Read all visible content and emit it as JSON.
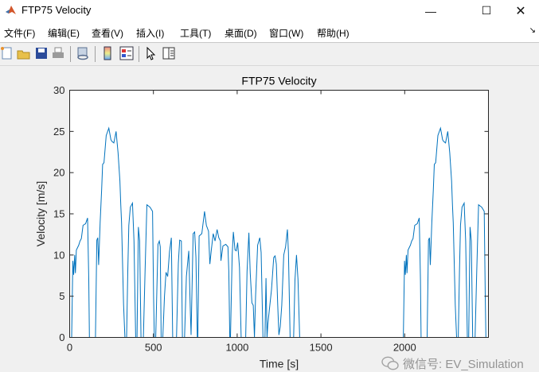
{
  "window": {
    "title": "FTP75 Velocity",
    "controls": {
      "minimize": "—",
      "maximize": "☐",
      "close": "✕"
    }
  },
  "menu": {
    "items": [
      {
        "label": "文件(F)"
      },
      {
        "label": "编辑(E)"
      },
      {
        "label": "查看(V)"
      },
      {
        "label": "插入(I)"
      },
      {
        "label": "工具(T)"
      },
      {
        "label": "桌面(D)"
      },
      {
        "label": "窗口(W)"
      },
      {
        "label": "帮助(H)"
      }
    ],
    "dock_glyph": "↘"
  },
  "toolbar": {
    "icons": [
      "new-file-icon",
      "open-folder-icon",
      "save-icon",
      "print-icon",
      "link-figure-icon",
      "colorbar-icon",
      "legend-icon",
      "pointer-icon",
      "property-inspector-icon"
    ]
  },
  "watermark": {
    "text": "微信号: EV_Simulation"
  },
  "colors": {
    "line": "#0072BD",
    "axes": "#262626",
    "figure_bg": "#f0f0f0"
  },
  "chart_data": {
    "type": "line",
    "title": "FTP75 Velocity",
    "xlabel": "Time [s]",
    "ylabel": "Velocity [m/s]",
    "xlim": [
      0,
      2500
    ],
    "ylim": [
      0,
      30
    ],
    "xticks": [
      0,
      500,
      1000,
      1500,
      2000
    ],
    "yticks": [
      0,
      5,
      10,
      15,
      20,
      25,
      30
    ],
    "grid": false,
    "legend": "none",
    "series": [
      {
        "color": "#0072BD",
        "points": [
          [
            0,
            0
          ],
          [
            12,
            0
          ],
          [
            19,
            9.3
          ],
          [
            24,
            7.6
          ],
          [
            30,
            10
          ],
          [
            34,
            7.8
          ],
          [
            40,
            10.6
          ],
          [
            54,
            11.2
          ],
          [
            62,
            11.7
          ],
          [
            70,
            12
          ],
          [
            80,
            13.6
          ],
          [
            95,
            13.8
          ],
          [
            107,
            14.5
          ],
          [
            114,
            7
          ],
          [
            118,
            0
          ],
          [
            154,
            0
          ],
          [
            162,
            11.8
          ],
          [
            168,
            12.1
          ],
          [
            173,
            8.8
          ],
          [
            182,
            14
          ],
          [
            191,
            18
          ],
          [
            197,
            21
          ],
          [
            205,
            21.2
          ],
          [
            218,
            24.5
          ],
          [
            234,
            25.4
          ],
          [
            246,
            24
          ],
          [
            252,
            23.8
          ],
          [
            264,
            23.6
          ],
          [
            277,
            25
          ],
          [
            289,
            22.4
          ],
          [
            300,
            19
          ],
          [
            305,
            16.1
          ],
          [
            310,
            13.9
          ],
          [
            322,
            4
          ],
          [
            330,
            0
          ],
          [
            340,
            0
          ],
          [
            347,
            8
          ],
          [
            353,
            13.6
          ],
          [
            362,
            15.8
          ],
          [
            375,
            16.3
          ],
          [
            384,
            11.7
          ],
          [
            394,
            0
          ],
          [
            402,
            0
          ],
          [
            410,
            13.4
          ],
          [
            418,
            11.7
          ],
          [
            426,
            0
          ],
          [
            440,
            0
          ],
          [
            450,
            8
          ],
          [
            461,
            16.1
          ],
          [
            480,
            15.8
          ],
          [
            495,
            15.3
          ],
          [
            501,
            5
          ],
          [
            505,
            0
          ],
          [
            514,
            0
          ],
          [
            527,
            11.3
          ],
          [
            535,
            11.7
          ],
          [
            541,
            11
          ],
          [
            546,
            0
          ],
          [
            556,
            0
          ],
          [
            566,
            5
          ],
          [
            575,
            7.9
          ],
          [
            585,
            7.4
          ],
          [
            596,
            10.4
          ],
          [
            607,
            12.1
          ],
          [
            615,
            0
          ],
          [
            638,
            0
          ],
          [
            649,
            9
          ],
          [
            657,
            11.8
          ],
          [
            667,
            11.7
          ],
          [
            673,
            0
          ],
          [
            686,
            0
          ],
          [
            697,
            7.4
          ],
          [
            711,
            10.5
          ],
          [
            721,
            2.7
          ],
          [
            725,
            0.3
          ],
          [
            737,
            12.6
          ],
          [
            746,
            12.8
          ],
          [
            754,
            9.7
          ],
          [
            762,
            0
          ],
          [
            765,
            0
          ],
          [
            773,
            12.3
          ],
          [
            789,
            12.6
          ],
          [
            805,
            15.3
          ],
          [
            816,
            13.6
          ],
          [
            829,
            12.9
          ],
          [
            837,
            8.9
          ],
          [
            845,
            10.5
          ],
          [
            857,
            12.6
          ],
          [
            868,
            11.7
          ],
          [
            880,
            13.1
          ],
          [
            890,
            12.1
          ],
          [
            900,
            11.7
          ],
          [
            903,
            9.3
          ],
          [
            915,
            11.1
          ],
          [
            932,
            11.3
          ],
          [
            945,
            11
          ],
          [
            950,
            8
          ],
          [
            956,
            0
          ],
          [
            960,
            0
          ],
          [
            970,
            10
          ],
          [
            977,
            12.8
          ],
          [
            987,
            10.6
          ],
          [
            995,
            10.5
          ],
          [
            1003,
            11.5
          ],
          [
            1014,
            8.5
          ],
          [
            1024,
            0
          ],
          [
            1051,
            0
          ],
          [
            1059,
            8
          ],
          [
            1070,
            12.7
          ],
          [
            1078,
            7.8
          ],
          [
            1088,
            4.2
          ],
          [
            1096,
            3.9
          ],
          [
            1103,
            0
          ],
          [
            1110,
            5
          ],
          [
            1122,
            11.2
          ],
          [
            1135,
            12.1
          ],
          [
            1143,
            10.3
          ],
          [
            1154,
            0
          ],
          [
            1166,
            0
          ],
          [
            1172,
            7.2
          ],
          [
            1178,
            0
          ],
          [
            1183,
            1.6
          ],
          [
            1205,
            5.8
          ],
          [
            1218,
            9.7
          ],
          [
            1226,
            9.9
          ],
          [
            1234,
            8.9
          ],
          [
            1242,
            4
          ],
          [
            1249,
            0.3
          ],
          [
            1257,
            1.3
          ],
          [
            1266,
            3.9
          ],
          [
            1278,
            10
          ],
          [
            1289,
            11
          ],
          [
            1300,
            13.1
          ],
          [
            1306,
            10.3
          ],
          [
            1316,
            0
          ],
          [
            1337,
            0
          ],
          [
            1345,
            7
          ],
          [
            1354,
            10
          ],
          [
            1363,
            7
          ],
          [
            1373,
            0
          ],
          [
            1992,
            0
          ],
          [
            1999,
            9.3
          ],
          [
            2004,
            7.6
          ],
          [
            2010,
            10
          ],
          [
            2014,
            7.8
          ],
          [
            2020,
            10.6
          ],
          [
            2034,
            11.2
          ],
          [
            2042,
            11.7
          ],
          [
            2050,
            12
          ],
          [
            2060,
            13.6
          ],
          [
            2075,
            13.8
          ],
          [
            2087,
            14.5
          ],
          [
            2094,
            7
          ],
          [
            2098,
            0
          ],
          [
            2134,
            0
          ],
          [
            2142,
            11.8
          ],
          [
            2148,
            12.1
          ],
          [
            2153,
            8.8
          ],
          [
            2162,
            14
          ],
          [
            2171,
            18
          ],
          [
            2177,
            21
          ],
          [
            2185,
            21.2
          ],
          [
            2198,
            24.5
          ],
          [
            2214,
            25.4
          ],
          [
            2226,
            24
          ],
          [
            2232,
            23.8
          ],
          [
            2244,
            23.6
          ],
          [
            2257,
            25
          ],
          [
            2269,
            22.4
          ],
          [
            2280,
            19
          ],
          [
            2285,
            16.1
          ],
          [
            2290,
            13.9
          ],
          [
            2302,
            4
          ],
          [
            2310,
            0
          ],
          [
            2320,
            0
          ],
          [
            2327,
            8
          ],
          [
            2333,
            13.6
          ],
          [
            2342,
            15.8
          ],
          [
            2355,
            16.3
          ],
          [
            2364,
            11.7
          ],
          [
            2374,
            0
          ],
          [
            2382,
            0
          ],
          [
            2390,
            13.4
          ],
          [
            2398,
            11.7
          ],
          [
            2406,
            0
          ],
          [
            2420,
            0
          ],
          [
            2430,
            8
          ],
          [
            2441,
            16.1
          ],
          [
            2460,
            15.8
          ],
          [
            2475,
            15.3
          ],
          [
            2481,
            5
          ],
          [
            2485,
            0
          ]
        ]
      }
    ]
  }
}
